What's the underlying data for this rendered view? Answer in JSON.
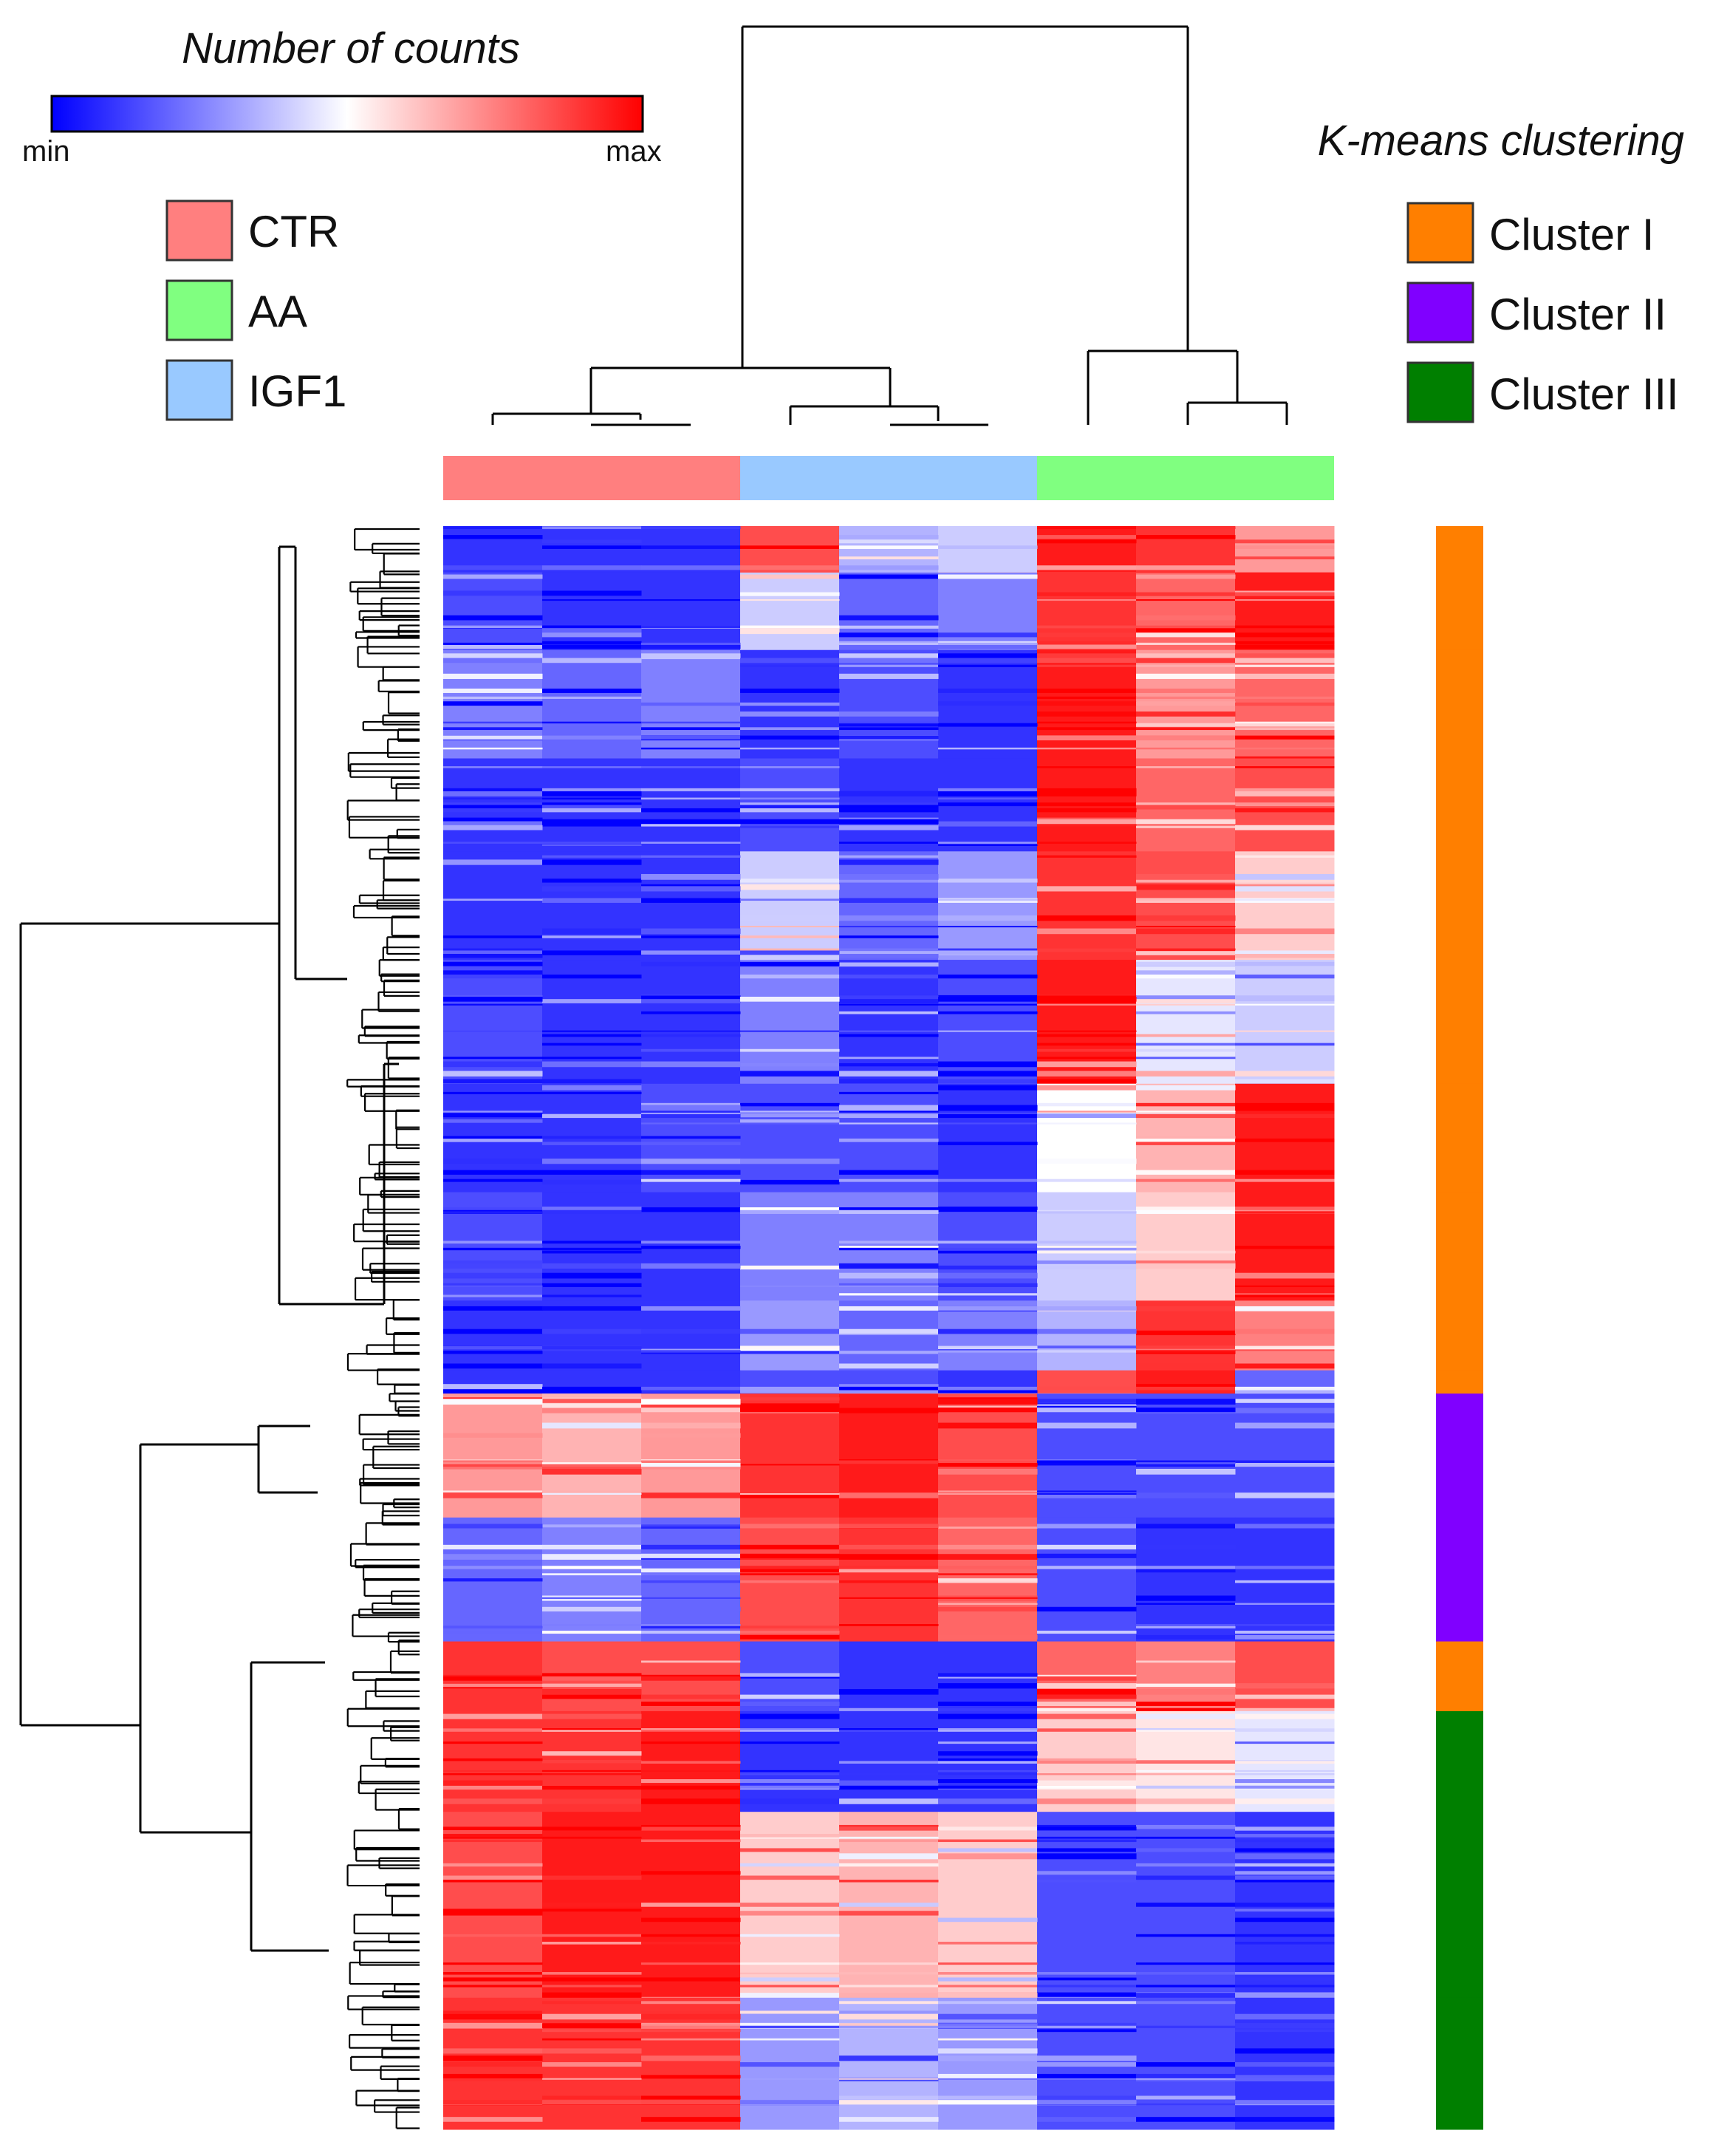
{
  "chart_data": {
    "type": "heatmap",
    "title": "Number of counts",
    "colorbar": {
      "min_label": "min",
      "max_label": "max",
      "colors": [
        "#0000ff",
        "#ffffff",
        "#ff0000"
      ]
    },
    "groups": [
      {
        "name": "CTR",
        "color": "#ff7f7f",
        "samples": 3
      },
      {
        "name": "IGF1",
        "color": "#99c9ff",
        "samples": 3
      },
      {
        "name": "AA",
        "color": "#80ff80",
        "samples": 3
      }
    ],
    "legend_groups": [
      {
        "name": "CTR",
        "color": "#ff7f7f"
      },
      {
        "name": "AA",
        "color": "#80ff80"
      },
      {
        "name": "IGF1",
        "color": "#99c9ff"
      }
    ],
    "kmeans_title": "K-means clustering",
    "clusters": [
      {
        "name": "Cluster I",
        "color": "#ff7f00"
      },
      {
        "name": "Cluster II",
        "color": "#8000ff"
      },
      {
        "name": "Cluster III",
        "color": "#007f00"
      }
    ],
    "row_blocks": [
      {
        "fraction": 0.03,
        "cluster": "Cluster I",
        "levels": [
          0.1,
          0.1,
          0.1,
          0.85,
          0.35,
          0.4,
          0.95,
          0.9,
          0.7
        ]
      },
      {
        "fraction": 0.05,
        "cluster": "Cluster I",
        "levels": [
          0.15,
          0.1,
          0.1,
          0.4,
          0.2,
          0.25,
          0.9,
          0.8,
          0.95
        ]
      },
      {
        "fraction": 0.07,
        "cluster": "Cluster I",
        "levels": [
          0.25,
          0.2,
          0.25,
          0.1,
          0.15,
          0.1,
          0.95,
          0.7,
          0.8
        ]
      },
      {
        "fraction": 0.06,
        "cluster": "Cluster I",
        "levels": [
          0.1,
          0.1,
          0.1,
          0.15,
          0.1,
          0.1,
          0.95,
          0.8,
          0.85
        ]
      },
      {
        "fraction": 0.07,
        "cluster": "Cluster I",
        "levels": [
          0.1,
          0.1,
          0.1,
          0.4,
          0.2,
          0.3,
          0.9,
          0.85,
          0.6
        ]
      },
      {
        "fraction": 0.08,
        "cluster": "Cluster I",
        "levels": [
          0.15,
          0.1,
          0.1,
          0.25,
          0.1,
          0.15,
          0.95,
          0.45,
          0.4
        ]
      },
      {
        "fraction": 0.07,
        "cluster": "Cluster I",
        "levels": [
          0.1,
          0.1,
          0.15,
          0.15,
          0.15,
          0.1,
          0.5,
          0.65,
          0.95
        ]
      },
      {
        "fraction": 0.07,
        "cluster": "Cluster I",
        "levels": [
          0.15,
          0.1,
          0.1,
          0.25,
          0.25,
          0.15,
          0.4,
          0.6,
          0.95
        ]
      },
      {
        "fraction": 0.045,
        "cluster": "Cluster I",
        "levels": [
          0.1,
          0.1,
          0.1,
          0.3,
          0.2,
          0.25,
          0.35,
          0.9,
          0.75
        ]
      },
      {
        "fraction": 0.015,
        "cluster": "Cluster I",
        "levels": [
          0.1,
          0.1,
          0.1,
          0.15,
          0.15,
          0.1,
          0.85,
          0.95,
          0.2
        ]
      },
      {
        "fraction": 0.08,
        "cluster": "Cluster II",
        "levels": [
          0.7,
          0.65,
          0.7,
          0.9,
          0.95,
          0.85,
          0.15,
          0.15,
          0.15
        ]
      },
      {
        "fraction": 0.08,
        "cluster": "Cluster II",
        "levels": [
          0.2,
          0.25,
          0.2,
          0.85,
          0.9,
          0.8,
          0.15,
          0.1,
          0.1
        ]
      },
      {
        "fraction": 0.045,
        "cluster": "Cluster I",
        "levels": [
          0.9,
          0.85,
          0.85,
          0.15,
          0.1,
          0.1,
          0.8,
          0.75,
          0.85
        ]
      },
      {
        "fraction": 0.065,
        "cluster": "Cluster III",
        "levels": [
          0.9,
          0.9,
          0.95,
          0.1,
          0.1,
          0.1,
          0.6,
          0.55,
          0.45
        ]
      },
      {
        "fraction": 0.12,
        "cluster": "Cluster III",
        "levels": [
          0.85,
          0.95,
          0.95,
          0.6,
          0.65,
          0.6,
          0.15,
          0.15,
          0.1
        ]
      },
      {
        "fraction": 0.085,
        "cluster": "Cluster III",
        "levels": [
          0.9,
          0.9,
          0.9,
          0.3,
          0.35,
          0.3,
          0.15,
          0.15,
          0.1
        ]
      }
    ]
  }
}
